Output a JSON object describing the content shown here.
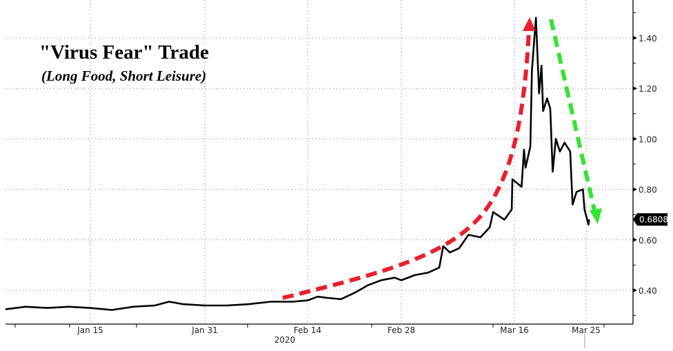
{
  "chart_data": {
    "type": "line",
    "title": "\"Virus Fear\" Trade",
    "subtitle": "(Long Food, Short Leisure)",
    "xlabel": "",
    "ylabel": "",
    "year_label": "2020",
    "x_unit": "day of year 2020 (Jan 1 = 0)",
    "x_ticks": [
      {
        "label": "Jan 15",
        "day": 14
      },
      {
        "label": "Jan 31",
        "day": 30
      },
      {
        "label": "Feb 14",
        "day": 44
      },
      {
        "label": "Feb 28",
        "day": 58
      },
      {
        "label": "Mar 16",
        "day": 75
      },
      {
        "label": "Mar 25",
        "day": 84
      }
    ],
    "y_ticks": [
      "0.40",
      "0.60",
      "0.80",
      "1.00",
      "1.20",
      "1.40"
    ],
    "ylim": [
      0.28,
      1.5
    ],
    "grid": true,
    "last_value_label": "0.6808",
    "series": [
      {
        "name": "Long Food / Short Leisure",
        "color": "#000000",
        "x": [
          2.2,
          5,
          8,
          11,
          14,
          17,
          20,
          23,
          25,
          27,
          30,
          33,
          36,
          39,
          42,
          44,
          45.5,
          47,
          49,
          51,
          53,
          55,
          57,
          58,
          60,
          62,
          63.7,
          64.3,
          65.3,
          66.7,
          68.1,
          69.9,
          71.3,
          71.8,
          73.5,
          74.6,
          74.7,
          75.9,
          76.2,
          76.4,
          77.0,
          77.2,
          77.7,
          78.1,
          78.4,
          78.6,
          79.1,
          79.5,
          79.8,
          80.2,
          80.7,
          81.3,
          82.0,
          82.3,
          82.8,
          83.6,
          83.8,
          84.3,
          84.4
        ],
        "y": [
          0.325,
          0.335,
          0.33,
          0.335,
          0.33,
          0.322,
          0.335,
          0.34,
          0.355,
          0.345,
          0.34,
          0.34,
          0.345,
          0.355,
          0.355,
          0.36,
          0.375,
          0.37,
          0.365,
          0.39,
          0.42,
          0.44,
          0.45,
          0.44,
          0.46,
          0.47,
          0.49,
          0.575,
          0.55,
          0.567,
          0.62,
          0.61,
          0.65,
          0.71,
          0.68,
          0.72,
          0.84,
          0.81,
          0.957,
          0.886,
          0.97,
          1.27,
          1.48,
          1.18,
          1.29,
          1.11,
          1.16,
          1.12,
          0.87,
          1.0,
          0.95,
          0.985,
          0.95,
          0.74,
          0.79,
          0.8,
          0.72,
          0.66,
          0.6808
        ]
      }
    ],
    "annotations": [
      {
        "type": "arrow",
        "style": "dashed",
        "color": "#e8202e",
        "direction": "up"
      },
      {
        "type": "arrow",
        "style": "dashed",
        "color": "#33e333",
        "direction": "down"
      }
    ]
  }
}
